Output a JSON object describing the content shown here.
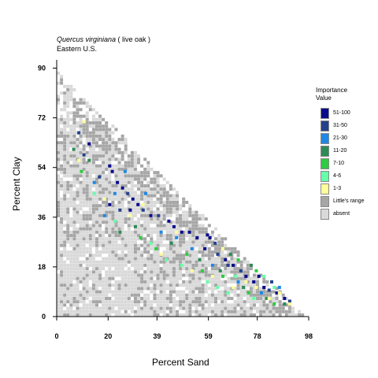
{
  "title": {
    "species": "Quercus virginiana",
    "common": " ( live oak )"
  },
  "subtitle": "Eastern U.S.",
  "legend": {
    "title_line1": "Importance",
    "title_line2": "Value",
    "items": [
      {
        "label": "51-100",
        "color": "#0a0a8c"
      },
      {
        "label": "31-50",
        "color": "#24418c"
      },
      {
        "label": "21-30",
        "color": "#1e88e5"
      },
      {
        "label": "11-20",
        "color": "#2e8b57"
      },
      {
        "label": "7-10",
        "color": "#2ecc40"
      },
      {
        "label": "4-6",
        "color": "#66ffaa"
      },
      {
        "label": "1-3",
        "color": "#ffff99"
      },
      {
        "label": "Little's range",
        "color": "#a6a6a6"
      },
      {
        "label": "absent",
        "color": "#d9d9d9"
      }
    ]
  },
  "chart_data": {
    "type": "heatmap",
    "title": "Quercus virginiana ( live oak )",
    "subtitle": "Eastern U.S.",
    "xlabel": "Percent Sand",
    "ylabel": "Percent Clay",
    "xlim": [
      0,
      98
    ],
    "ylim": [
      0,
      93
    ],
    "x_ticks": [
      "0",
      "20",
      "39",
      "59",
      "78",
      "98"
    ],
    "y_ticks": [
      "0",
      "18",
      "36",
      "54",
      "72",
      "90"
    ],
    "legend_placement": "right",
    "grid": false,
    "points": [
      [
        20,
        54,
        "51-100"
      ],
      [
        21,
        52,
        "51-100"
      ],
      [
        23,
        48,
        "51-100"
      ],
      [
        25,
        46,
        "51-100"
      ],
      [
        27,
        44,
        "31-50"
      ],
      [
        29,
        42,
        "51-100"
      ],
      [
        31,
        40,
        "51-100"
      ],
      [
        20,
        40,
        "51-100"
      ],
      [
        24,
        38,
        "31-50"
      ],
      [
        28,
        38,
        "51-100"
      ],
      [
        33,
        38,
        "31-50"
      ],
      [
        36,
        36,
        "51-100"
      ],
      [
        39,
        36,
        "31-50"
      ],
      [
        43,
        34,
        "51-100"
      ],
      [
        45,
        32,
        "51-100"
      ],
      [
        48,
        30,
        "51-100"
      ],
      [
        51,
        30,
        "51-100"
      ],
      [
        54,
        28,
        "51-100"
      ],
      [
        58,
        29,
        "51-100"
      ],
      [
        59,
        28,
        "51-100"
      ],
      [
        61,
        26,
        "31-50"
      ],
      [
        57,
        24,
        "51-100"
      ],
      [
        62,
        22,
        "31-50"
      ],
      [
        65,
        20,
        "51-100"
      ],
      [
        68,
        18,
        "51-100"
      ],
      [
        71,
        16,
        "31-50"
      ],
      [
        73,
        14,
        "51-100"
      ],
      [
        76,
        12,
        "51-100"
      ],
      [
        80,
        10,
        "51-100"
      ],
      [
        82,
        9,
        "31-50"
      ],
      [
        85,
        8,
        "51-100"
      ],
      [
        88,
        6,
        "51-100"
      ],
      [
        90,
        5,
        "31-50"
      ],
      [
        78,
        14,
        "51-100"
      ],
      [
        83,
        12,
        "31-50"
      ],
      [
        66,
        18,
        "31-50"
      ],
      [
        10,
        58,
        "31-50"
      ],
      [
        12,
        62,
        "51-100"
      ],
      [
        8,
        66,
        "31-50"
      ],
      [
        16,
        50,
        "31-50"
      ],
      [
        26,
        52,
        "21-30"
      ],
      [
        22,
        44,
        "21-30"
      ],
      [
        18,
        36,
        "21-30"
      ],
      [
        40,
        30,
        "21-30"
      ],
      [
        46,
        28,
        "21-30"
      ],
      [
        52,
        24,
        "21-30"
      ],
      [
        60,
        18,
        "21-30"
      ],
      [
        70,
        12,
        "21-30"
      ],
      [
        79,
        8,
        "21-30"
      ],
      [
        86,
        10,
        "21-30"
      ],
      [
        14,
        48,
        "21-30"
      ],
      [
        34,
        44,
        "21-30"
      ],
      [
        30,
        32,
        "11-20"
      ],
      [
        44,
        26,
        "11-20"
      ],
      [
        55,
        20,
        "11-20"
      ],
      [
        63,
        16,
        "11-20"
      ],
      [
        72,
        10,
        "11-20"
      ],
      [
        81,
        6,
        "11-20"
      ],
      [
        67,
        22,
        "11-20"
      ],
      [
        75,
        18,
        "11-20"
      ],
      [
        12,
        56,
        "11-20"
      ],
      [
        24,
        30,
        "11-20"
      ],
      [
        88,
        4,
        "11-20"
      ],
      [
        6,
        60,
        "11-20"
      ],
      [
        32,
        28,
        "7-10"
      ],
      [
        50,
        22,
        "7-10"
      ],
      [
        64,
        14,
        "7-10"
      ],
      [
        74,
        8,
        "7-10"
      ],
      [
        84,
        4,
        "7-10"
      ],
      [
        70,
        20,
        "7-10"
      ],
      [
        9,
        52,
        "7-10"
      ],
      [
        38,
        24,
        "7-10"
      ],
      [
        56,
        16,
        "7-10"
      ],
      [
        77,
        16,
        "7-10"
      ],
      [
        14,
        44,
        "4-6"
      ],
      [
        36,
        26,
        "4-6"
      ],
      [
        48,
        18,
        "4-6"
      ],
      [
        58,
        12,
        "4-6"
      ],
      [
        62,
        10,
        "4-6"
      ],
      [
        69,
        14,
        "4-6"
      ],
      [
        76,
        6,
        "4-6"
      ],
      [
        84,
        10,
        "4-6"
      ],
      [
        22,
        34,
        "4-6"
      ],
      [
        42,
        20,
        "4-6"
      ],
      [
        66,
        8,
        "4-6"
      ],
      [
        80,
        14,
        "4-6"
      ],
      [
        10,
        70,
        "1-3"
      ],
      [
        18,
        42,
        "1-3"
      ],
      [
        28,
        36,
        "1-3"
      ],
      [
        40,
        22,
        "1-3"
      ],
      [
        52,
        16,
        "1-3"
      ],
      [
        60,
        14,
        "1-3"
      ],
      [
        68,
        10,
        "1-3"
      ],
      [
        73,
        12,
        "1-3"
      ],
      [
        77,
        10,
        "1-3"
      ],
      [
        82,
        6,
        "1-3"
      ],
      [
        86,
        8,
        "1-3"
      ],
      [
        90,
        4,
        "1-3"
      ],
      [
        64,
        24,
        "1-3"
      ],
      [
        46,
        30,
        "1-3"
      ],
      [
        33,
        40,
        "1-3"
      ],
      [
        8,
        56,
        "1-3"
      ]
    ]
  }
}
